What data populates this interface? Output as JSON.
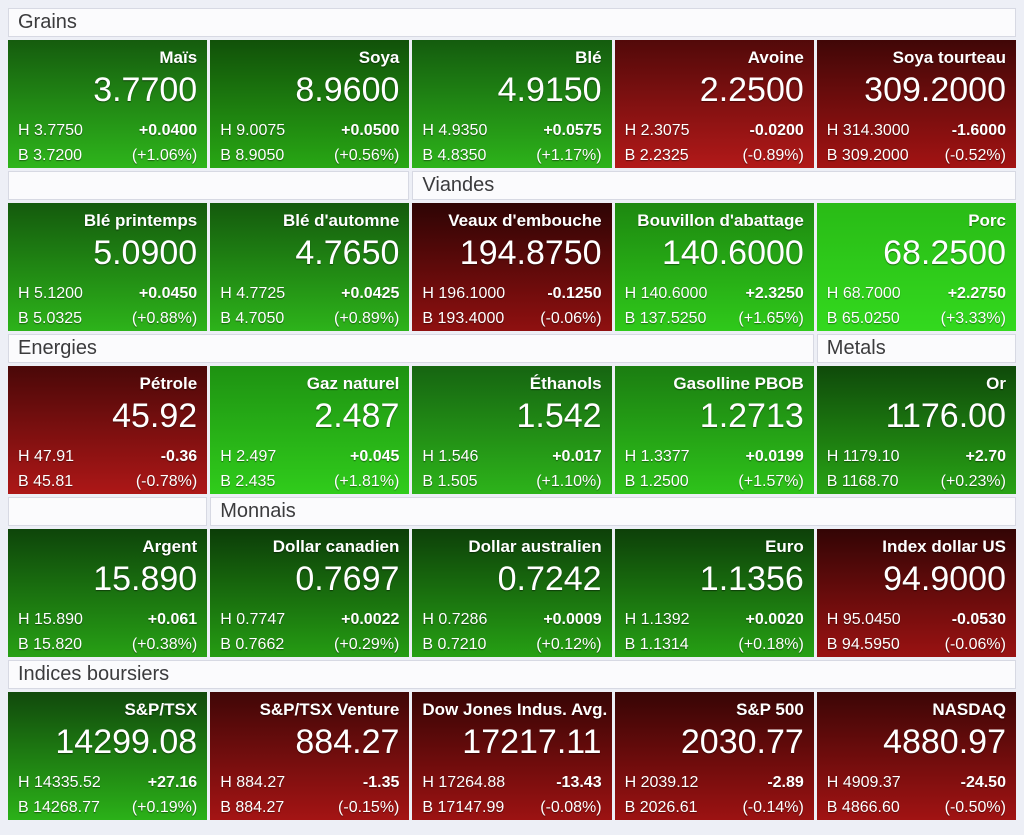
{
  "labels": {
    "high": "H",
    "low": "B"
  },
  "sections": [
    {
      "headers": [
        {
          "label": "Grains",
          "span": 5
        }
      ],
      "tiles": [
        {
          "name": "Maïs",
          "price": "3.7700",
          "high": "3.7750",
          "low": "3.7200",
          "change": "+0.0400",
          "change_pct": "(+1.06%)",
          "trend": "up",
          "color_top": "#155c0e",
          "color_bottom": "#2eb51b"
        },
        {
          "name": "Soya",
          "price": "8.9600",
          "high": "9.0075",
          "low": "8.9050",
          "change": "+0.0500",
          "change_pct": "(+0.56%)",
          "trend": "up",
          "color_top": "#115109",
          "color_bottom": "#28a714"
        },
        {
          "name": "Blé",
          "price": "4.9150",
          "high": "4.9350",
          "low": "4.8350",
          "change": "+0.0575",
          "change_pct": "(+1.17%)",
          "trend": "up",
          "color_top": "#145c0e",
          "color_bottom": "#2db31a"
        },
        {
          "name": "Avoine",
          "price": "2.2500",
          "high": "2.3075",
          "low": "2.2325",
          "change": "-0.0200",
          "change_pct": "(-0.89%)",
          "trend": "down",
          "color_top": "#520909",
          "color_bottom": "#b21919"
        },
        {
          "name": "Soya tourteau",
          "price": "309.2000",
          "high": "314.3000",
          "low": "309.2000",
          "change": "-1.6000",
          "change_pct": "(-0.52%)",
          "trend": "down",
          "color_top": "#400707",
          "color_bottom": "#a31313"
        }
      ]
    },
    {
      "headers": [
        {
          "label": "",
          "span": 2
        },
        {
          "label": "Viandes",
          "span": 3
        }
      ],
      "tiles": [
        {
          "name": "Blé printemps",
          "price": "5.0900",
          "high": "5.1200",
          "low": "5.0325",
          "change": "+0.0450",
          "change_pct": "(+0.88%)",
          "trend": "up",
          "color_top": "#145a0d",
          "color_bottom": "#2db31a"
        },
        {
          "name": "Blé d'automne",
          "price": "4.7650",
          "high": "4.7725",
          "low": "4.7050",
          "change": "+0.0425",
          "change_pct": "(+0.89%)",
          "trend": "up",
          "color_top": "#145a0d",
          "color_bottom": "#2db31a"
        },
        {
          "name": "Veaux d'embouche",
          "price": "194.8750",
          "high": "196.1000",
          "low": "193.4000",
          "change": "-0.1250",
          "change_pct": "(-0.06%)",
          "trend": "down",
          "color_top": "#2e0404",
          "color_bottom": "#8f1010"
        },
        {
          "name": "Bouvillon d'abattage",
          "price": "140.6000",
          "high": "140.6000",
          "low": "137.5250",
          "change": "+2.3250",
          "change_pct": "(+1.65%)",
          "trend": "up",
          "color_top": "#1d8810",
          "color_bottom": "#2fc91a"
        },
        {
          "name": "Porc",
          "price": "68.2500",
          "high": "68.7000",
          "low": "65.0250",
          "change": "+2.2750",
          "change_pct": "(+3.33%)",
          "trend": "up",
          "color_top": "#29bb16",
          "color_bottom": "#33d91e"
        }
      ]
    },
    {
      "headers": [
        {
          "label": "Energies",
          "span": 4
        },
        {
          "label": "Metals",
          "span": 1
        }
      ],
      "tiles": [
        {
          "name": "Pétrole",
          "price": "45.92",
          "high": "47.91",
          "low": "45.81",
          "change": "-0.36",
          "change_pct": "(-0.78%)",
          "trend": "down",
          "color_top": "#4a0808",
          "color_bottom": "#ad1717"
        },
        {
          "name": "Gaz naturel",
          "price": "2.487",
          "high": "2.497",
          "low": "2.435",
          "change": "+0.045",
          "change_pct": "(+1.81%)",
          "trend": "up",
          "color_top": "#1e9212",
          "color_bottom": "#30cc1b"
        },
        {
          "name": "Éthanols",
          "price": "1.542",
          "high": "1.546",
          "low": "1.505",
          "change": "+0.017",
          "change_pct": "(+1.10%)",
          "trend": "up",
          "color_top": "#166511",
          "color_bottom": "#2db31a"
        },
        {
          "name": "Gasolline PBOB",
          "price": "1.2713",
          "high": "1.3377",
          "low": "1.2500",
          "change": "+0.0199",
          "change_pct": "(+1.57%)",
          "trend": "up",
          "color_top": "#1b7d11",
          "color_bottom": "#2ec31a"
        },
        {
          "name": "Or",
          "price": "1176.00",
          "high": "1179.10",
          "low": "1168.70",
          "change": "+2.70",
          "change_pct": "(+0.23%)",
          "trend": "up",
          "color_top": "#0f4a0a",
          "color_bottom": "#28a315"
        }
      ]
    },
    {
      "headers": [
        {
          "label": "",
          "span": 1
        },
        {
          "label": "Monnais",
          "span": 4
        }
      ],
      "tiles": [
        {
          "name": "Argent",
          "price": "15.890",
          "high": "15.890",
          "low": "15.820",
          "change": "+0.061",
          "change_pct": "(+0.38%)",
          "trend": "up",
          "color_top": "#0e450a",
          "color_bottom": "#27a015"
        },
        {
          "name": "Dollar canadien",
          "price": "0.7697",
          "high": "0.7747",
          "low": "0.7662",
          "change": "+0.0022",
          "change_pct": "(+0.29%)",
          "trend": "up",
          "color_top": "#0c3d08",
          "color_bottom": "#259c13"
        },
        {
          "name": "Dollar australien",
          "price": "0.7242",
          "high": "0.7286",
          "low": "0.7210",
          "change": "+0.0009",
          "change_pct": "(+0.12%)",
          "trend": "up",
          "color_top": "#0d4009",
          "color_bottom": "#26a014"
        },
        {
          "name": "Euro",
          "price": "1.1356",
          "high": "1.1392",
          "low": "1.1314",
          "change": "+0.0020",
          "change_pct": "(+0.18%)",
          "trend": "up",
          "color_top": "#0d4009",
          "color_bottom": "#26a014"
        },
        {
          "name": "Index dollar US",
          "price": "94.9000",
          "high": "95.0450",
          "low": "94.5950",
          "change": "-0.0530",
          "change_pct": "(-0.06%)",
          "trend": "down",
          "color_top": "#330505",
          "color_bottom": "#9a1212"
        }
      ]
    },
    {
      "headers": [
        {
          "label": "Indices boursiers",
          "span": 5
        }
      ],
      "tiles": [
        {
          "name": "S&P/TSX",
          "price": "14299.08",
          "high": "14335.52",
          "low": "14268.77",
          "change": "+27.16",
          "change_pct": "(+0.19%)",
          "trend": "up",
          "color_top": "#11490c",
          "color_bottom": "#2bb118"
        },
        {
          "name": "S&P/TSX Venture",
          "price": "884.27",
          "high": "884.27",
          "low": "884.27",
          "change": "-1.35",
          "change_pct": "(-0.15%)",
          "trend": "down",
          "color_top": "#400707",
          "color_bottom": "#a41414"
        },
        {
          "name": "Dow Jones Indus. Avg.",
          "price": "17217.11",
          "high": "17264.88",
          "low": "17147.99",
          "change": "-13.43",
          "change_pct": "(-0.08%)",
          "trend": "down",
          "color_top": "#370505",
          "color_bottom": "#9c1212"
        },
        {
          "name": "S&P 500",
          "price": "2030.77",
          "high": "2039.12",
          "low": "2026.61",
          "change": "-2.89",
          "change_pct": "(-0.14%)",
          "trend": "down",
          "color_top": "#370505",
          "color_bottom": "#9c1212"
        },
        {
          "name": "NASDAQ",
          "price": "4880.97",
          "high": "4909.37",
          "low": "4866.60",
          "change": "-24.50",
          "change_pct": "(-0.50%)",
          "trend": "down",
          "color_top": "#3c0606",
          "color_bottom": "#a11313"
        }
      ]
    }
  ]
}
